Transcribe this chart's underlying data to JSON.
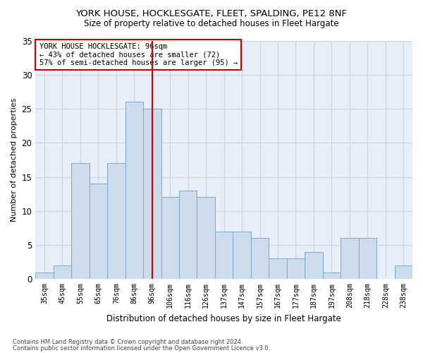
{
  "title": "YORK HOUSE, HOCKLESGATE, FLEET, SPALDING, PE12 8NF",
  "subtitle": "Size of property relative to detached houses in Fleet Hargate",
  "xlabel": "Distribution of detached houses by size in Fleet Hargate",
  "ylabel": "Number of detached properties",
  "footnote1": "Contains HM Land Registry data © Crown copyright and database right 2024.",
  "footnote2": "Contains public sector information licensed under the Open Government Licence v3.0.",
  "annotation_line1": "YORK HOUSE HOCKLESGATE: 96sqm",
  "annotation_line2": "← 43% of detached houses are smaller (72)",
  "annotation_line3": "57% of semi-detached houses are larger (95) →",
  "bar_color": "#ccdcec",
  "bar_edge_color": "#7aaace",
  "vline_color": "#cc0000",
  "categories": [
    "35sqm",
    "45sqm",
    "55sqm",
    "65sqm",
    "76sqm",
    "86sqm",
    "96sqm",
    "106sqm",
    "116sqm",
    "126sqm",
    "137sqm",
    "147sqm",
    "157sqm",
    "167sqm",
    "177sqm",
    "187sqm",
    "197sqm",
    "208sqm",
    "218sqm",
    "228sqm",
    "238sqm"
  ],
  "values": [
    1,
    2,
    17,
    14,
    17,
    26,
    25,
    12,
    13,
    12,
    7,
    7,
    6,
    3,
    3,
    4,
    1,
    6,
    6,
    0,
    2
  ],
  "ylim": [
    0,
    35
  ],
  "yticks": [
    0,
    5,
    10,
    15,
    20,
    25,
    30,
    35
  ],
  "grid_color": "#c8d4e4",
  "background_color": "#ffffff",
  "plot_bg_color": "#e8eef8"
}
